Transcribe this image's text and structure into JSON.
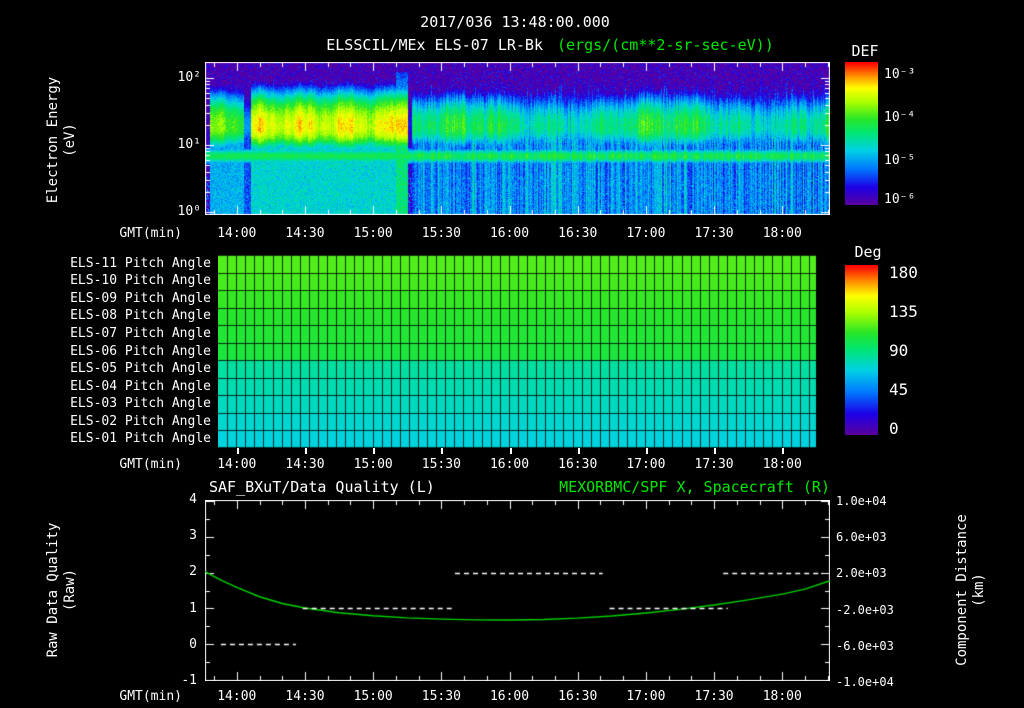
{
  "header": {
    "title": "2017/036 13:48:00.000",
    "instrument": "ELSSCIL/MEx ELS-07 LR-Bk",
    "units": "(ergs/(cm**2-sr-sec-eV))"
  },
  "colors": {
    "background": "#000000",
    "text": "#ffffff",
    "accent_green": "#00e800",
    "curve_green": "#00d400",
    "quality_white": "#ffffff"
  },
  "time_axis": {
    "label": "GMT(min)",
    "ticks": [
      "14:00",
      "14:30",
      "15:00",
      "15:30",
      "16:00",
      "16:30",
      "17:00",
      "17:30",
      "18:00"
    ],
    "start": "13:46",
    "end": "18:21"
  },
  "spectrogram": {
    "ylabel_line1": "Electron Energy",
    "ylabel_line2": "(eV)",
    "y_ticks": [
      "10²",
      "10¹",
      "10⁰"
    ],
    "colorbar": {
      "title": "DEF",
      "ticks": [
        "10⁻³",
        "10⁻⁴",
        "10⁻⁵",
        "10⁻⁶"
      ]
    }
  },
  "pitch_panel": {
    "colorbar": {
      "title": "Deg",
      "ticks": [
        "180",
        "135",
        "90",
        "45",
        "0"
      ]
    }
  },
  "line_panel": {
    "title_left": "SAF_BXuT/Data Quality (L)",
    "title_right": "MEXORBMC/SPF X, Spacecraft (R)",
    "ylabel_line1": "Raw Data Quality",
    "ylabel_line2": "(Raw)",
    "right_ylabel_line1": "Component Distance",
    "right_ylabel_line2": "(km)",
    "y_ticks_left": [
      "4",
      "3",
      "2",
      "1",
      "0",
      "-1"
    ],
    "y_ticks_right": [
      "1.0e+04",
      "6.0e+03",
      "2.0e+03",
      "-2.0e+03",
      "-6.0e+03",
      "-1.0e+04"
    ]
  },
  "chart_data": [
    {
      "type": "heatmap",
      "name": "electron-energy-spectrogram",
      "title": "ELSSCIL/MEx ELS-07 LR-Bk",
      "units": "ergs/(cm**2-sr-sec-eV)",
      "x_range": [
        "13:48",
        "18:21"
      ],
      "y_axis": {
        "label": "Electron Energy (eV)",
        "scale": "log",
        "range_eV": [
          1,
          175
        ]
      },
      "color_axis": {
        "label": "DEF",
        "scale": "log",
        "range": [
          1e-06,
          0.001
        ]
      },
      "features": [
        {
          "time": [
            "13:48",
            "14:04"
          ],
          "energy_eV": [
            8,
            60
          ],
          "peak_flux": 9e-05,
          "note": "moderate yellow-green plasma band near 20-30 eV"
        },
        {
          "time": [
            "14:06",
            "15:10"
          ],
          "energy_eV": [
            8,
            70
          ],
          "peak_flux": 0.0005,
          "note": "intense yellow band with cyan haze extending to ~100 eV"
        },
        {
          "time": [
            "15:08",
            "15:12"
          ],
          "energy_eV": [
            5,
            130
          ],
          "peak_flux": 0.0008,
          "note": "bright vertical enhancement followed by brief dropout"
        },
        {
          "time": [
            "15:13",
            "18:21"
          ],
          "energy_eV": [
            6,
            40
          ],
          "peak_flux": 5e-05,
          "note": "weaker vertically-striped band, persistent narrow green line near 7 eV, cyan haze to ~60 eV"
        },
        {
          "time": [
            "13:48",
            "18:21"
          ],
          "energy_eV": [
            1,
            5
          ],
          "peak_flux": 3e-06,
          "note": "dark blue/purple noisy background at lowest energies"
        }
      ]
    },
    {
      "type": "heatmap",
      "name": "pitch-angle-panel",
      "color_axis": {
        "label": "Deg",
        "range_deg": [
          0,
          180
        ]
      },
      "data_end": "18:15",
      "rows": [
        {
          "label": "ELS-11 Pitch Angle",
          "pitch_deg": 115
        },
        {
          "label": "ELS-10 Pitch Angle",
          "pitch_deg": 113
        },
        {
          "label": "ELS-09 Pitch Angle",
          "pitch_deg": 110
        },
        {
          "label": "ELS-08 Pitch Angle",
          "pitch_deg": 107
        },
        {
          "label": "ELS-07 Pitch Angle",
          "pitch_deg": 105
        },
        {
          "label": "ELS-06 Pitch Angle",
          "pitch_deg": 103
        },
        {
          "label": "ELS-05 Pitch Angle",
          "pitch_deg": 82
        },
        {
          "label": "ELS-04 Pitch Angle",
          "pitch_deg": 79
        },
        {
          "label": "ELS-03 Pitch Angle",
          "pitch_deg": 76
        },
        {
          "label": "ELS-02 Pitch Angle",
          "pitch_deg": 73
        },
        {
          "label": "ELS-01 Pitch Angle",
          "pitch_deg": 70
        }
      ]
    },
    {
      "type": "line",
      "name": "data-quality-and-spacecraft-x",
      "ylim_left": [
        -1,
        4
      ],
      "ylim_right": [
        -10000,
        10000
      ],
      "series": [
        {
          "name": "MEXORBMC/SPF X, Spacecraft",
          "axis": "right",
          "color": "#00d400",
          "style": "solid",
          "x": [
            "13:46",
            "13:53",
            "14:00",
            "14:10",
            "14:20",
            "14:30",
            "14:45",
            "15:00",
            "15:15",
            "15:30",
            "15:45",
            "16:00",
            "16:15",
            "16:30",
            "16:45",
            "17:00",
            "17:15",
            "17:30",
            "17:45",
            "18:00",
            "18:10",
            "18:21"
          ],
          "y_km": [
            2100,
            1150,
            350,
            -700,
            -1450,
            -1950,
            -2480,
            -2820,
            -3060,
            -3200,
            -3280,
            -3300,
            -3240,
            -3090,
            -2850,
            -2520,
            -2110,
            -1620,
            -1050,
            -400,
            150,
            1100
          ]
        },
        {
          "name": "SAF_BXuT/Data Quality",
          "axis": "left",
          "color": "#ffffff",
          "style": "dashed",
          "segments": [
            {
              "value": 0,
              "from": "13:53",
              "to": "14:26"
            },
            {
              "value": 1,
              "from": "14:29",
              "to": "15:36"
            },
            {
              "value": 2,
              "from": "15:36",
              "to": "16:41"
            },
            {
              "value": 1,
              "from": "16:44",
              "to": "17:36"
            },
            {
              "value": 2,
              "from": "17:34",
              "to": "18:18"
            }
          ]
        }
      ]
    }
  ]
}
